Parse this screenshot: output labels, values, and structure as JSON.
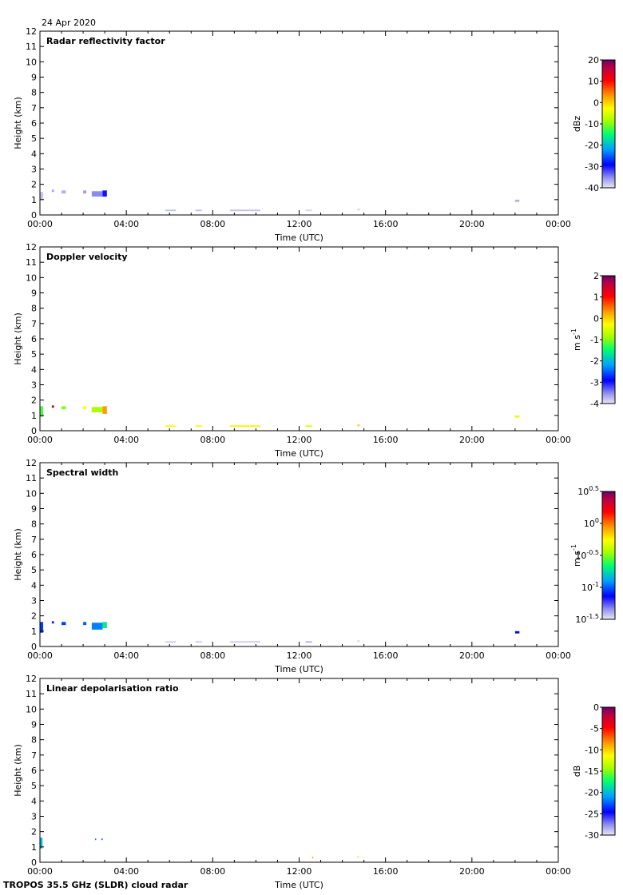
{
  "date": "24 Apr 2020",
  "footer": "TROPOS 35.5 GHz (SLDR) cloud radar",
  "x_tick_labels": [
    "00:00",
    "04:00",
    "08:00",
    "12:00",
    "16:00",
    "20:00",
    "00:00"
  ],
  "xlabel": "Time (UTC)",
  "ylabel": "Height (km)",
  "chart_data": [
    {
      "type": "heatmap",
      "title": "Radar reflectivity factor",
      "xlabel": "Time (UTC)",
      "ylabel": "Height (km)",
      "xlim": [
        0,
        24
      ],
      "ylim": [
        0,
        12
      ],
      "colorbar": {
        "unit": "dBz",
        "scale": "linear",
        "min": -40,
        "max": 20,
        "ticks": [
          "20",
          "10",
          "0",
          "-10",
          "-20",
          "-30",
          "-40"
        ]
      },
      "echoes": [
        {
          "t0": 0.0,
          "t1": 0.15,
          "h0": 1.0,
          "h1": 1.5,
          "v": -38
        },
        {
          "t0": 0.55,
          "t1": 0.65,
          "h0": 1.5,
          "h1": 1.65,
          "v": -36
        },
        {
          "t0": 1.0,
          "t1": 1.2,
          "h0": 1.4,
          "h1": 1.6,
          "v": -37
        },
        {
          "t0": 2.0,
          "t1": 2.15,
          "h0": 1.4,
          "h1": 1.6,
          "v": -36
        },
        {
          "t0": 2.4,
          "t1": 2.9,
          "h0": 1.2,
          "h1": 1.55,
          "v": -35
        },
        {
          "t0": 2.9,
          "t1": 3.1,
          "h0": 1.2,
          "h1": 1.6,
          "v": -30
        },
        {
          "t0": 5.8,
          "t1": 6.3,
          "h0": 0.25,
          "h1": 0.35,
          "v": -38
        },
        {
          "t0": 7.2,
          "t1": 7.5,
          "h0": 0.25,
          "h1": 0.35,
          "v": -38
        },
        {
          "t0": 8.8,
          "t1": 10.2,
          "h0": 0.25,
          "h1": 0.35,
          "v": -38
        },
        {
          "t0": 12.3,
          "t1": 12.6,
          "h0": 0.25,
          "h1": 0.35,
          "v": -39
        },
        {
          "t0": 14.7,
          "t1": 14.8,
          "h0": 0.3,
          "h1": 0.4,
          "v": -38
        },
        {
          "t0": 22.0,
          "t1": 22.2,
          "h0": 0.85,
          "h1": 1.0,
          "v": -37
        }
      ]
    },
    {
      "type": "heatmap",
      "title": "Doppler velocity",
      "xlabel": "Time (UTC)",
      "ylabel": "Height (km)",
      "xlim": [
        0,
        24
      ],
      "ylim": [
        0,
        12
      ],
      "colorbar": {
        "unit": "m s-1",
        "scale": "linear",
        "min": -4,
        "max": 2,
        "ticks": [
          "2",
          "1",
          "0",
          "-1",
          "-2",
          "-3",
          "-4"
        ]
      },
      "echoes": [
        {
          "t0": 0.0,
          "t1": 0.15,
          "h0": 0.9,
          "h1": 1.6,
          "v": -1.2
        },
        {
          "t0": 0.55,
          "t1": 0.65,
          "h0": 1.5,
          "h1": 1.65,
          "v": 1.8
        },
        {
          "t0": 1.0,
          "t1": 1.2,
          "h0": 1.4,
          "h1": 1.6,
          "v": -1.0
        },
        {
          "t0": 2.0,
          "t1": 2.15,
          "h0": 1.4,
          "h1": 1.6,
          "v": -0.3
        },
        {
          "t0": 2.4,
          "t1": 2.9,
          "h0": 1.2,
          "h1": 1.55,
          "v": -0.8
        },
        {
          "t0": 2.9,
          "t1": 3.1,
          "h0": 1.1,
          "h1": 1.6,
          "v": 0.3
        },
        {
          "t0": 5.8,
          "t1": 6.3,
          "h0": 0.25,
          "h1": 0.35,
          "v": -0.3
        },
        {
          "t0": 7.2,
          "t1": 7.5,
          "h0": 0.25,
          "h1": 0.35,
          "v": -0.3
        },
        {
          "t0": 8.8,
          "t1": 10.2,
          "h0": 0.25,
          "h1": 0.35,
          "v": -0.2
        },
        {
          "t0": 12.3,
          "t1": 12.6,
          "h0": 0.25,
          "h1": 0.35,
          "v": -0.5
        },
        {
          "t0": 14.7,
          "t1": 14.8,
          "h0": 0.3,
          "h1": 0.4,
          "v": 0.1
        },
        {
          "t0": 22.0,
          "t1": 22.2,
          "h0": 0.85,
          "h1": 1.0,
          "v": -0.4
        }
      ]
    },
    {
      "type": "heatmap",
      "title": "Spectral width",
      "xlabel": "Time (UTC)",
      "ylabel": "Height (km)",
      "xlim": [
        0,
        24
      ],
      "ylim": [
        0,
        12
      ],
      "colorbar": {
        "unit": "m s-1",
        "scale": "log10",
        "min": -1.5,
        "max": 0.5,
        "ticks": [
          "0.5",
          "0",
          "-0.5",
          "-1",
          "-1.5"
        ],
        "tick_base": "10"
      },
      "echoes": [
        {
          "t0": 0.0,
          "t1": 0.15,
          "h0": 0.9,
          "h1": 1.6,
          "v": -1.05
        },
        {
          "t0": 0.55,
          "t1": 0.65,
          "h0": 1.5,
          "h1": 1.65,
          "v": -1.1
        },
        {
          "t0": 1.0,
          "t1": 1.2,
          "h0": 1.4,
          "h1": 1.6,
          "v": -1.05
        },
        {
          "t0": 2.0,
          "t1": 2.15,
          "h0": 1.4,
          "h1": 1.6,
          "v": -1.0
        },
        {
          "t0": 2.4,
          "t1": 2.9,
          "h0": 1.1,
          "h1": 1.55,
          "v": -0.95
        },
        {
          "t0": 2.9,
          "t1": 3.1,
          "h0": 1.2,
          "h1": 1.6,
          "v": -0.7
        },
        {
          "t0": 5.8,
          "t1": 6.3,
          "h0": 0.25,
          "h1": 0.35,
          "v": -1.45
        },
        {
          "t0": 7.2,
          "t1": 7.5,
          "h0": 0.25,
          "h1": 0.35,
          "v": -1.45
        },
        {
          "t0": 8.8,
          "t1": 10.2,
          "h0": 0.25,
          "h1": 0.35,
          "v": -1.45
        },
        {
          "t0": 12.3,
          "t1": 12.6,
          "h0": 0.25,
          "h1": 0.35,
          "v": -1.4
        },
        {
          "t0": 14.7,
          "t1": 14.8,
          "h0": 0.3,
          "h1": 0.4,
          "v": -1.45
        },
        {
          "t0": 22.0,
          "t1": 22.2,
          "h0": 0.85,
          "h1": 1.0,
          "v": -1.15
        }
      ]
    },
    {
      "type": "heatmap",
      "title": "Linear depolarisation ratio",
      "xlabel": "Time (UTC)",
      "ylabel": "Height (km)",
      "xlim": [
        0,
        24
      ],
      "ylim": [
        0,
        12
      ],
      "colorbar": {
        "unit": "dB",
        "scale": "linear",
        "min": -30,
        "max": 0,
        "ticks": [
          "0",
          "-5",
          "-10",
          "-15",
          "-20",
          "-25",
          "-30"
        ]
      },
      "echoes": [
        {
          "t0": 0.0,
          "t1": 0.12,
          "h0": 0.9,
          "h1": 1.6,
          "v": -20
        },
        {
          "t0": 2.55,
          "t1": 2.6,
          "h0": 1.45,
          "h1": 1.55,
          "v": -22
        },
        {
          "t0": 2.85,
          "t1": 2.9,
          "h0": 1.45,
          "h1": 1.55,
          "v": -23
        },
        {
          "t0": 12.6,
          "t1": 12.65,
          "h0": 0.25,
          "h1": 0.35,
          "v": -8
        },
        {
          "t0": 14.7,
          "t1": 14.75,
          "h0": 0.3,
          "h1": 0.4,
          "v": -10
        }
      ]
    }
  ]
}
